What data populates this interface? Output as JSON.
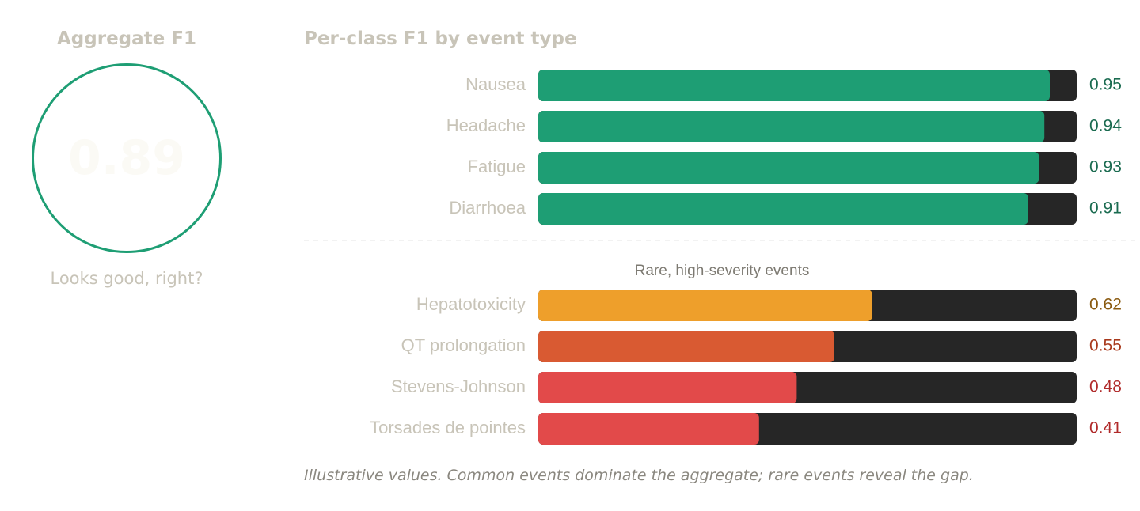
{
  "aggregate": {
    "title": "Aggregate F1",
    "value": "0.89",
    "caption": "Looks good, right?"
  },
  "chart_title": "Per-class F1 by event type",
  "rare_group_label": "Rare, high-severity events",
  "footnote": "Illustrative values. Common events dominate the aggregate; rare events reveal the gap.",
  "colors": {
    "track": "#262626",
    "common": "#1e9e74",
    "common_text": "#1a6b50",
    "hepatotoxicity": "#ee9f2b",
    "qt": "#d95a32",
    "severe": "#e24a4a",
    "label": "#c8c4b8"
  },
  "chart_data": {
    "type": "bar",
    "orientation": "horizontal",
    "title": "Per-class F1 by event type",
    "xlim": [
      0,
      1
    ],
    "grid": false,
    "groups": [
      {
        "name": "",
        "categories": [
          "Nausea",
          "Headache",
          "Fatigue",
          "Diarrhoea"
        ],
        "values": [
          0.95,
          0.94,
          0.93,
          0.91
        ],
        "labels": [
          "0.95",
          "0.94",
          "0.93",
          "0.91"
        ],
        "colors": [
          "#1e9e74",
          "#1e9e74",
          "#1e9e74",
          "#1e9e74"
        ],
        "label_colors": [
          "#1a6b50",
          "#1a6b50",
          "#1a6b50",
          "#1a6b50"
        ]
      },
      {
        "name": "Rare, high-severity events",
        "categories": [
          "Hepatotoxicity",
          "QT prolongation",
          "Stevens-Johnson",
          "Torsades de pointes"
        ],
        "values": [
          0.62,
          0.55,
          0.48,
          0.41
        ],
        "labels": [
          "0.62",
          "0.55",
          "0.48",
          "0.41"
        ],
        "colors": [
          "#ee9f2b",
          "#d95a32",
          "#e24a4a",
          "#e24a4a"
        ],
        "label_colors": [
          "#8a5a10",
          "#a8391c",
          "#b02a2a",
          "#b02a2a"
        ]
      }
    ]
  }
}
